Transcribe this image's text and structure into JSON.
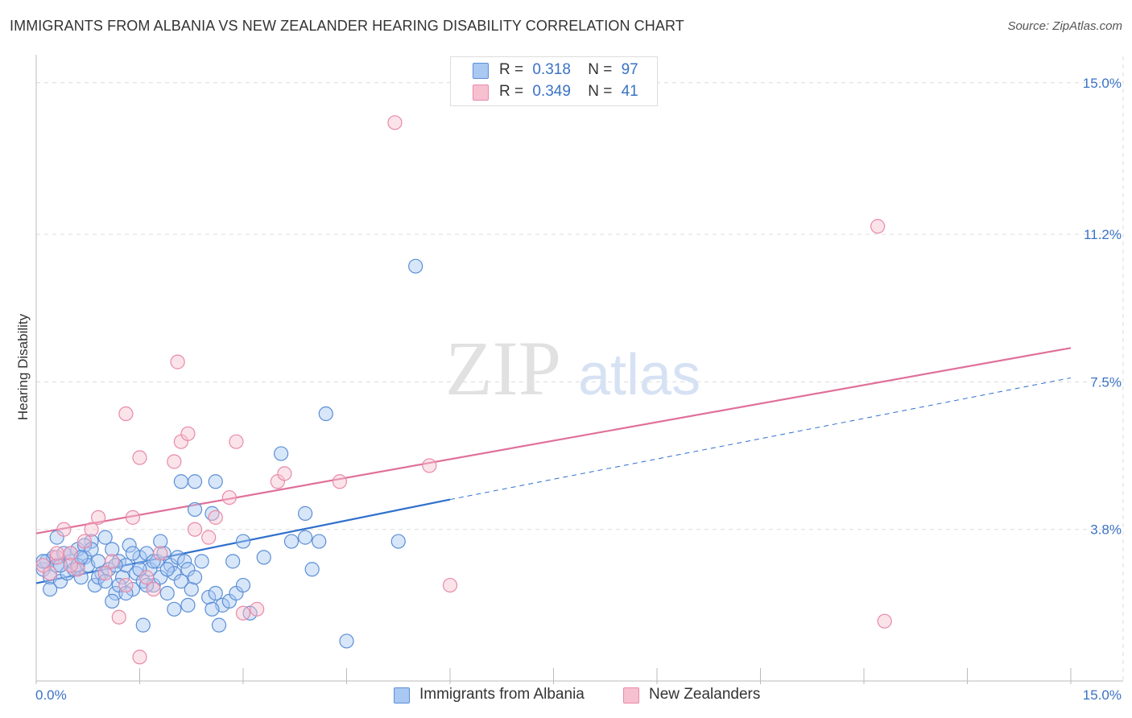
{
  "header": {
    "title": "IMMIGRANTS FROM ALBANIA VS NEW ZEALANDER HEARING DISABILITY CORRELATION CHART",
    "source": "Source: ZipAtlas.com"
  },
  "watermark": {
    "part1": "ZIP",
    "part2": "atlas"
  },
  "legend": {
    "rows": [
      {
        "r_label": "R =",
        "r_value": "0.318",
        "n_label": "N =",
        "n_value": "97"
      },
      {
        "r_label": "R =",
        "r_value": "0.349",
        "n_label": "N =",
        "n_value": "41"
      }
    ]
  },
  "bottom_legend": {
    "series1": "Immigrants from Albania",
    "series2": "New Zealanders"
  },
  "colors": {
    "albania_fill": "#a9c8f2",
    "albania_stroke": "#5b8fd6",
    "albania_line": "#2f6fcc",
    "nz_fill": "#f7c0d0",
    "nz_stroke": "#e88aa8",
    "nz_line": "#e0709a",
    "tick_text": "#3a72c4",
    "grid": "#dcdcdc"
  },
  "chart_data": {
    "type": "scatter",
    "title": "IMMIGRANTS FROM ALBANIA VS NEW ZEALANDER HEARING DISABILITY CORRELATION CHART",
    "xlabel": "",
    "ylabel": "Hearing Disability",
    "xlim": [
      0,
      15
    ],
    "ylim": [
      0,
      15.5
    ],
    "x_tick_labels": [
      "0.0%",
      "15.0%"
    ],
    "y_ticks": [
      {
        "value": 3.8,
        "label": "3.8%"
      },
      {
        "value": 7.5,
        "label": "7.5%"
      },
      {
        "value": 11.2,
        "label": "11.2%"
      },
      {
        "value": 15.0,
        "label": "15.0%"
      }
    ],
    "grid": true,
    "legend_placement": "top-center",
    "series": [
      {
        "name": "Immigrants from Albania",
        "r": 0.318,
        "n": 97,
        "trend": {
          "x_start": 0,
          "y_start": 2.45,
          "x_solid_end": 6.0,
          "y_solid_end": 4.55,
          "x_end": 15,
          "y_end": 7.6
        },
        "points": [
          [
            0.1,
            2.8
          ],
          [
            0.15,
            3.0
          ],
          [
            0.2,
            2.6
          ],
          [
            0.25,
            3.1
          ],
          [
            0.3,
            2.9
          ],
          [
            0.35,
            2.5
          ],
          [
            0.4,
            3.2
          ],
          [
            0.45,
            2.7
          ],
          [
            0.5,
            3.0
          ],
          [
            0.55,
            2.8
          ],
          [
            0.6,
            3.3
          ],
          [
            0.65,
            2.6
          ],
          [
            0.7,
            3.1
          ],
          [
            0.75,
            2.9
          ],
          [
            0.8,
            3.5
          ],
          [
            0.85,
            2.4
          ],
          [
            0.9,
            3.0
          ],
          [
            0.95,
            2.7
          ],
          [
            1.0,
            3.6
          ],
          [
            1.05,
            2.8
          ],
          [
            1.1,
            3.3
          ],
          [
            1.15,
            2.2
          ],
          [
            1.2,
            3.0
          ],
          [
            1.25,
            2.6
          ],
          [
            1.3,
            2.9
          ],
          [
            1.35,
            3.4
          ],
          [
            1.4,
            2.3
          ],
          [
            1.45,
            2.7
          ],
          [
            1.5,
            3.1
          ],
          [
            1.55,
            2.5
          ],
          [
            1.6,
            3.2
          ],
          [
            1.65,
            2.8
          ],
          [
            1.7,
            2.4
          ],
          [
            1.75,
            3.0
          ],
          [
            1.8,
            2.6
          ],
          [
            1.85,
            3.2
          ],
          [
            1.9,
            2.2
          ],
          [
            1.95,
            2.9
          ],
          [
            2.0,
            2.7
          ],
          [
            2.05,
            3.1
          ],
          [
            2.1,
            2.5
          ],
          [
            2.15,
            3.0
          ],
          [
            2.2,
            2.8
          ],
          [
            2.25,
            2.3
          ],
          [
            2.3,
            2.6
          ],
          [
            2.4,
            3.0
          ],
          [
            2.5,
            2.1
          ],
          [
            2.6,
            2.2
          ],
          [
            2.7,
            1.9
          ],
          [
            2.8,
            2.0
          ],
          [
            2.9,
            2.2
          ],
          [
            3.0,
            2.4
          ],
          [
            3.1,
            1.7
          ],
          [
            0.2,
            2.3
          ],
          [
            0.3,
            3.6
          ],
          [
            0.5,
            3.2
          ],
          [
            0.6,
            2.9
          ],
          [
            0.7,
            3.4
          ],
          [
            0.8,
            3.3
          ],
          [
            0.9,
            2.6
          ],
          [
            1.0,
            2.5
          ],
          [
            1.1,
            2.0
          ],
          [
            1.2,
            2.4
          ],
          [
            1.3,
            2.2
          ],
          [
            1.4,
            3.2
          ],
          [
            1.5,
            2.8
          ],
          [
            1.6,
            2.4
          ],
          [
            1.7,
            3.0
          ],
          [
            1.8,
            3.5
          ],
          [
            1.9,
            2.8
          ],
          [
            2.0,
            1.8
          ],
          [
            2.2,
            1.9
          ],
          [
            2.3,
            4.3
          ],
          [
            2.1,
            5.0
          ],
          [
            2.3,
            5.0
          ],
          [
            2.6,
            5.0
          ],
          [
            2.55,
            4.2
          ],
          [
            3.0,
            3.5
          ],
          [
            3.3,
            3.1
          ],
          [
            3.55,
            5.7
          ],
          [
            3.7,
            3.5
          ],
          [
            3.9,
            3.6
          ],
          [
            4.1,
            3.5
          ],
          [
            3.9,
            4.2
          ],
          [
            4.0,
            2.8
          ],
          [
            2.65,
            1.4
          ],
          [
            1.55,
            1.4
          ],
          [
            4.2,
            6.7
          ],
          [
            5.25,
            3.5
          ],
          [
            5.5,
            10.4
          ],
          [
            4.5,
            1.0
          ],
          [
            2.85,
            3.0
          ],
          [
            2.55,
            1.8
          ],
          [
            1.15,
            2.9
          ],
          [
            0.1,
            3.0
          ],
          [
            0.35,
            2.9
          ],
          [
            0.65,
            3.1
          ]
        ]
      },
      {
        "name": "New Zealanders",
        "r": 0.349,
        "n": 41,
        "trend": {
          "x_start": 0,
          "y_start": 3.7,
          "x_end": 15,
          "y_end": 8.35
        },
        "points": [
          [
            0.1,
            2.9
          ],
          [
            0.2,
            2.7
          ],
          [
            0.3,
            3.1
          ],
          [
            0.4,
            3.8
          ],
          [
            0.5,
            3.2
          ],
          [
            0.6,
            2.8
          ],
          [
            0.7,
            3.5
          ],
          [
            0.8,
            3.8
          ],
          [
            0.9,
            4.1
          ],
          [
            1.0,
            2.7
          ],
          [
            1.1,
            3.0
          ],
          [
            1.2,
            1.6
          ],
          [
            1.3,
            2.4
          ],
          [
            1.4,
            4.1
          ],
          [
            1.5,
            5.6
          ],
          [
            1.6,
            2.6
          ],
          [
            1.7,
            2.3
          ],
          [
            1.8,
            3.2
          ],
          [
            2.0,
            5.5
          ],
          [
            2.1,
            6.0
          ],
          [
            2.2,
            6.2
          ],
          [
            2.3,
            3.8
          ],
          [
            2.5,
            3.6
          ],
          [
            2.6,
            4.1
          ],
          [
            2.8,
            4.6
          ],
          [
            2.9,
            6.0
          ],
          [
            3.0,
            1.7
          ],
          [
            3.2,
            1.8
          ],
          [
            3.5,
            5.0
          ],
          [
            3.6,
            5.2
          ],
          [
            4.4,
            5.0
          ],
          [
            5.2,
            14.0
          ],
          [
            5.7,
            5.4
          ],
          [
            6.0,
            2.4
          ],
          [
            1.3,
            6.7
          ],
          [
            2.05,
            8.0
          ],
          [
            1.5,
            0.6
          ],
          [
            0.3,
            3.2
          ],
          [
            0.5,
            2.9
          ],
          [
            12.2,
            11.4
          ],
          [
            12.3,
            1.5
          ]
        ]
      }
    ]
  }
}
